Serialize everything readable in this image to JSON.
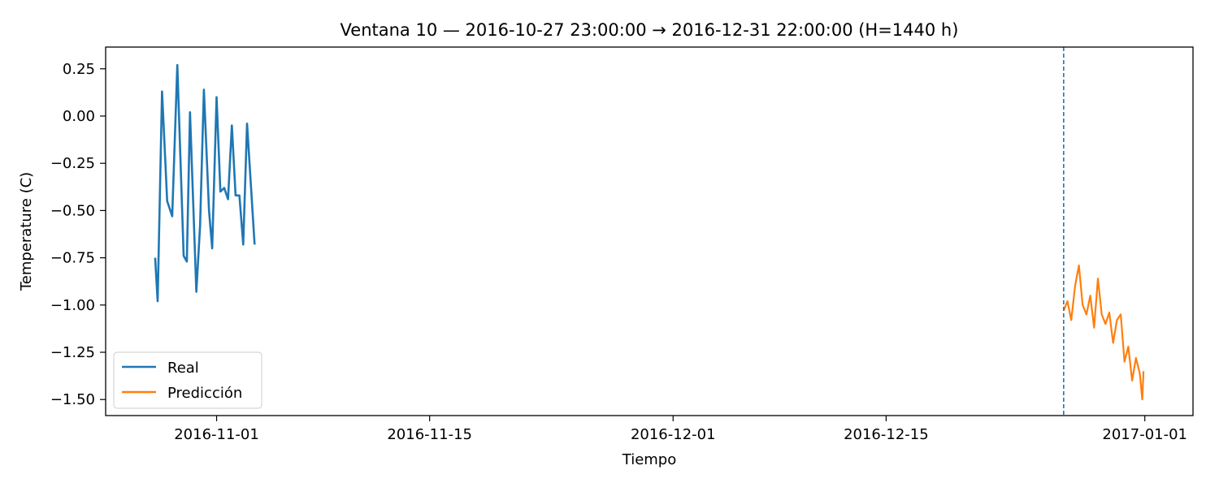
{
  "chart_data": {
    "type": "line",
    "title": "Ventana 10 — 2016-10-27 23:00:00 → 2016-12-31 22:00:00 (H=1440 h)",
    "xlabel": "Tiempo",
    "ylabel": "Temperature (C)",
    "xlim": [
      "2016-10-24T17:00:00",
      "2017-01-04T04:00:00"
    ],
    "ylim": [
      -1.585,
      0.365
    ],
    "xticks": [
      "2016-11-01",
      "2016-11-15",
      "2016-12-01",
      "2016-12-15",
      "2017-01-01"
    ],
    "yticks": [
      0.25,
      0.0,
      -0.25,
      -0.5,
      -0.75,
      -1.0,
      -1.25,
      -1.5
    ],
    "ytick_labels": [
      "0.25",
      "0.00",
      "−0.25",
      "−0.50",
      "−0.75",
      "−1.00",
      "−1.25",
      "−1.50"
    ],
    "grid": false,
    "legend_position": "lower-left",
    "forecast_start": "2016-12-26T16:00:00",
    "series": [
      {
        "name": "Real",
        "color": "#1f77b4",
        "points": [
          [
            "2016-10-27T23:00",
            -0.75
          ],
          [
            "2016-10-28T03:00",
            -0.98
          ],
          [
            "2016-10-28T10:00",
            0.13
          ],
          [
            "2016-10-28T18:00",
            -0.45
          ],
          [
            "2016-10-29T02:00",
            -0.53
          ],
          [
            "2016-10-29T10:00",
            0.27
          ],
          [
            "2016-10-29T20:00",
            -0.74
          ],
          [
            "2016-10-30T01:00",
            -0.77
          ],
          [
            "2016-10-30T06:00",
            0.02
          ],
          [
            "2016-10-30T16:00",
            -0.93
          ],
          [
            "2016-10-30T22:00",
            -0.58
          ],
          [
            "2016-10-31T04:00",
            0.14
          ],
          [
            "2016-10-31T12:00",
            -0.5
          ],
          [
            "2016-10-31T17:00",
            -0.7
          ],
          [
            "2016-11-01T00:00",
            0.1
          ],
          [
            "2016-11-01T06:00",
            -0.4
          ],
          [
            "2016-11-01T12:00",
            -0.38
          ],
          [
            "2016-11-01T18:00",
            -0.44
          ],
          [
            "2016-11-02T00:00",
            -0.05
          ],
          [
            "2016-11-02T06:00",
            -0.42
          ],
          [
            "2016-11-02T12:00",
            -0.42
          ],
          [
            "2016-11-02T18:00",
            -0.68
          ],
          [
            "2016-11-03T00:00",
            -0.04
          ],
          [
            "2016-11-03T12:00",
            -0.68
          ]
        ]
      },
      {
        "name": "Predicción",
        "color": "#ff7f0e",
        "points": [
          [
            "2016-12-26T16:00",
            -1.03
          ],
          [
            "2016-12-26T22:00",
            -0.98
          ],
          [
            "2016-12-27T04:00",
            -1.08
          ],
          [
            "2016-12-27T10:00",
            -0.9
          ],
          [
            "2016-12-27T16:00",
            -0.79
          ],
          [
            "2016-12-27T22:00",
            -1.0
          ],
          [
            "2016-12-28T04:00",
            -1.05
          ],
          [
            "2016-12-28T10:00",
            -0.95
          ],
          [
            "2016-12-28T16:00",
            -1.12
          ],
          [
            "2016-12-28T22:00",
            -0.86
          ],
          [
            "2016-12-29T04:00",
            -1.05
          ],
          [
            "2016-12-29T10:00",
            -1.1
          ],
          [
            "2016-12-29T16:00",
            -1.04
          ],
          [
            "2016-12-29T22:00",
            -1.2
          ],
          [
            "2016-12-30T04:00",
            -1.08
          ],
          [
            "2016-12-30T10:00",
            -1.05
          ],
          [
            "2016-12-30T16:00",
            -1.3
          ],
          [
            "2016-12-30T22:00",
            -1.22
          ],
          [
            "2016-12-31T04:00",
            -1.4
          ],
          [
            "2016-12-31T10:00",
            -1.28
          ],
          [
            "2016-12-31T16:00",
            -1.36
          ],
          [
            "2016-12-31T20:00",
            -1.5
          ],
          [
            "2016-12-31T22:00",
            -1.35
          ]
        ]
      }
    ]
  }
}
